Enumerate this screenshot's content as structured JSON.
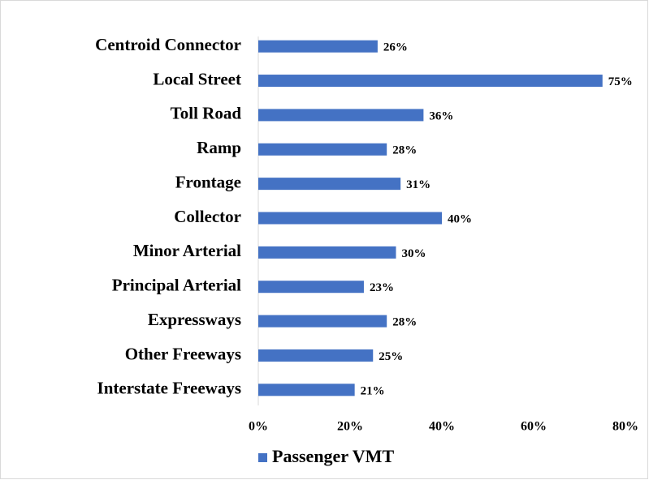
{
  "chart_data": {
    "type": "barh",
    "categories": [
      "Centroid Connector",
      "Local Street",
      "Toll Road",
      "Ramp",
      "Frontage",
      "Collector",
      "Minor Arterial",
      "Principal Arterial",
      "Expressways",
      "Other Freeways",
      "Interstate Freeways"
    ],
    "series": [
      {
        "name": "Passenger VMT",
        "color": "#4472c4",
        "values": [
          26,
          75,
          36,
          28,
          31,
          40,
          30,
          23,
          28,
          25,
          21
        ],
        "value_labels": [
          "26%",
          "75%",
          "36%",
          "28%",
          "31%",
          "40%",
          "30%",
          "23%",
          "28%",
          "25%",
          "21%"
        ]
      }
    ],
    "xlim": [
      0,
      80
    ],
    "xticks": [
      {
        "value": 0,
        "label": "0%"
      },
      {
        "value": 20,
        "label": "20%"
      },
      {
        "value": 40,
        "label": "40%"
      },
      {
        "value": 60,
        "label": "60%"
      },
      {
        "value": 80,
        "label": "80%"
      }
    ],
    "legend": "bottom"
  }
}
